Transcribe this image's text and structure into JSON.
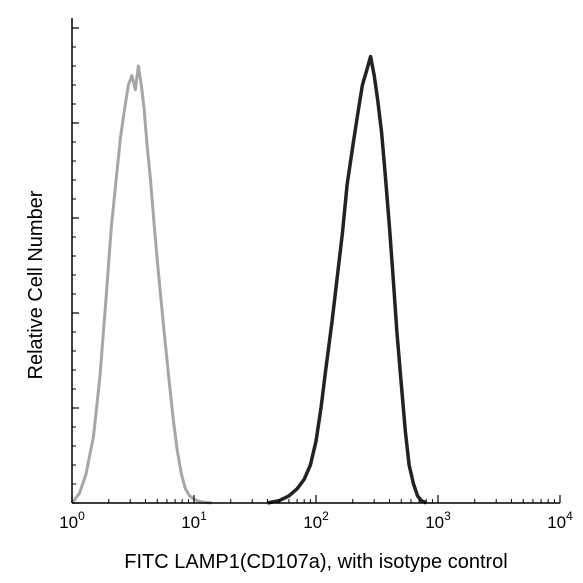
{
  "chart_data": {
    "type": "line",
    "title": "",
    "xlabel": "FITC LAMP1(CD107a), with isotype control",
    "ylabel": "Relative Cell Number",
    "x_scale": "log",
    "xlim": [
      1,
      10000
    ],
    "ylim": [
      0,
      100
    ],
    "x_ticks": [
      {
        "value": 1,
        "base": "10",
        "exp": "0"
      },
      {
        "value": 10,
        "base": "10",
        "exp": "1"
      },
      {
        "value": 100,
        "base": "10",
        "exp": "2"
      },
      {
        "value": 1000,
        "base": "10",
        "exp": "3"
      },
      {
        "value": 10000,
        "base": "10",
        "exp": "4"
      }
    ],
    "y_ticks": [
      0,
      20,
      40,
      60,
      80,
      100
    ],
    "grid": false,
    "legend": "none",
    "series": [
      {
        "role": "isotype control",
        "color": "#a6a6a6",
        "x": [
          1.0,
          1.15,
          1.3,
          1.5,
          1.7,
          1.9,
          2.1,
          2.3,
          2.5,
          2.7,
          2.9,
          3.1,
          3.3,
          3.5,
          3.7,
          3.9,
          4.1,
          4.4,
          4.7,
          5.0,
          5.4,
          5.8,
          6.3,
          6.8,
          7.3,
          7.9,
          8.5,
          9.2,
          10.0,
          10.6,
          11.3,
          12.0,
          13.0,
          14.0
        ],
        "y": [
          0,
          2,
          6,
          14,
          27,
          43,
          58,
          68,
          77,
          83,
          88,
          90,
          87,
          92,
          88,
          83,
          76,
          68,
          59,
          51,
          42,
          34,
          25,
          17,
          11,
          6,
          3,
          1.5,
          0.8,
          0.5,
          0.3,
          0.2,
          0.1,
          0
        ]
      },
      {
        "role": "LAMP1",
        "color": "#222222",
        "x": [
          40,
          50,
          60,
          70,
          80,
          90,
          100,
          110,
          120,
          135,
          150,
          165,
          180,
          200,
          220,
          240,
          260,
          280,
          300,
          320,
          345,
          370,
          400,
          430,
          460,
          500,
          540,
          580,
          630,
          680,
          730,
          800
        ],
        "y": [
          0,
          0.5,
          1.5,
          3,
          5,
          8,
          13,
          20,
          28,
          38,
          48,
          57,
          67,
          75,
          82,
          88,
          91,
          94,
          90,
          85,
          78,
          69,
          58,
          47,
          36,
          25,
          15,
          8,
          4,
          1.5,
          0.5,
          0
        ]
      }
    ]
  }
}
